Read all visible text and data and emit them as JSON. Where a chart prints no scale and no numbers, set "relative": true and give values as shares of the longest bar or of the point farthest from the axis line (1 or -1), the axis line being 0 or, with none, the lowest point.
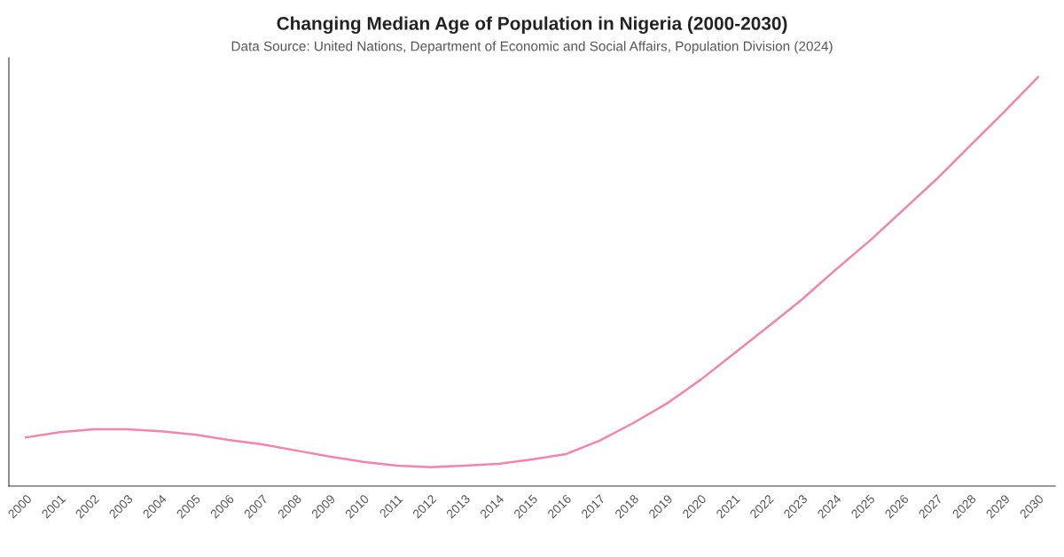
{
  "chart_data": {
    "type": "line",
    "title": "Changing Median Age of Population in Nigeria (2000-2030)",
    "subtitle": "Data Source: United Nations, Department of Economic and Social Affairs, Population Division (2024)",
    "categories": [
      "2000",
      "2001",
      "2002",
      "2003",
      "2004",
      "2005",
      "2006",
      "2007",
      "2008",
      "2009",
      "2010",
      "2011",
      "2012",
      "2013",
      "2014",
      "2015",
      "2016",
      "2017",
      "2018",
      "2019",
      "2020",
      "2021",
      "2022",
      "2023",
      "2024",
      "2025",
      "2026",
      "2027",
      "2028",
      "2029",
      "2030"
    ],
    "relative": true,
    "series": [
      {
        "color": "#f285b0",
        "values": [
          0.119,
          0.132,
          0.139,
          0.139,
          0.134,
          0.126,
          0.113,
          0.102,
          0.087,
          0.072,
          0.059,
          0.05,
          0.046,
          0.05,
          0.054,
          0.065,
          0.078,
          0.111,
          0.154,
          0.202,
          0.26,
          0.325,
          0.39,
          0.456,
          0.529,
          0.599,
          0.675,
          0.751,
          0.833,
          0.915,
          1
        ]
      }
    ],
    "grid": false,
    "legend": false,
    "marker": "none",
    "line_style": "solid"
  }
}
